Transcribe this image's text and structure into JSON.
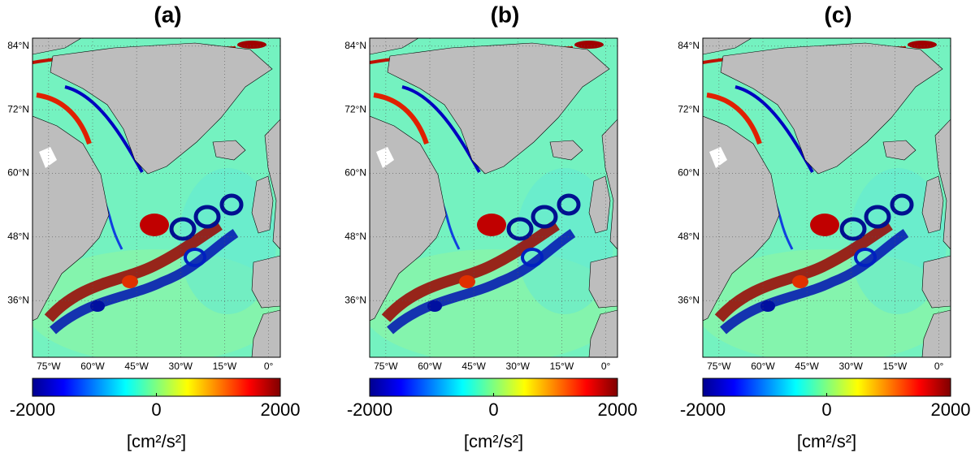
{
  "panels": [
    {
      "label": "(a)",
      "map": {
        "xlim": [
          -80.5,
          4
        ],
        "ylim": [
          25.3,
          85.5
        ],
        "lat_ticks": [
          {
            "value": 84,
            "label": "84°N"
          },
          {
            "value": 72,
            "label": "72°N"
          },
          {
            "value": 60,
            "label": "60°N"
          },
          {
            "value": 48,
            "label": "48°N"
          },
          {
            "value": 36,
            "label": "36°N"
          }
        ],
        "lon_ticks": [
          {
            "value": -75,
            "label": "75°W"
          },
          {
            "value": -60,
            "label": "60°W"
          },
          {
            "value": -45,
            "label": "45°W"
          },
          {
            "value": -30,
            "label": "30°W"
          },
          {
            "value": -15,
            "label": "15°W"
          },
          {
            "value": 0,
            "label": "0°"
          }
        ]
      },
      "colorbar": {
        "range": [
          -2000,
          2000
        ],
        "ticks": [
          -2000,
          0,
          2000
        ],
        "label": "[cm²/s²]"
      }
    },
    {
      "label": "(b)",
      "map": {
        "xlim": [
          -80.5,
          4
        ],
        "ylim": [
          25.3,
          85.5
        ],
        "lat_ticks": [
          {
            "value": 84,
            "label": "84°N"
          },
          {
            "value": 72,
            "label": "72°N"
          },
          {
            "value": 60,
            "label": "60°N"
          },
          {
            "value": 48,
            "label": "48°N"
          },
          {
            "value": 36,
            "label": "36°N"
          }
        ],
        "lon_ticks": [
          {
            "value": -75,
            "label": "75°W"
          },
          {
            "value": -60,
            "label": "60°W"
          },
          {
            "value": -45,
            "label": "45°W"
          },
          {
            "value": -30,
            "label": "30°W"
          },
          {
            "value": -15,
            "label": "15°W"
          },
          {
            "value": 0,
            "label": "0°"
          }
        ]
      },
      "colorbar": {
        "range": [
          -2000,
          2000
        ],
        "ticks": [
          -2000,
          0,
          2000
        ],
        "label": "[cm²/s²]"
      }
    },
    {
      "label": "(c)",
      "map": {
        "xlim": [
          -80.5,
          4
        ],
        "ylim": [
          25.3,
          85.5
        ],
        "lat_ticks": [
          {
            "value": 84,
            "label": "84°N"
          },
          {
            "value": 72,
            "label": "72°N"
          },
          {
            "value": 60,
            "label": "60°N"
          },
          {
            "value": 48,
            "label": "48°N"
          },
          {
            "value": 36,
            "label": "36°N"
          }
        ],
        "lon_ticks": [
          {
            "value": -75,
            "label": "75°W"
          },
          {
            "value": -60,
            "label": "60°W"
          },
          {
            "value": -45,
            "label": "45°W"
          },
          {
            "value": -30,
            "label": "30°W"
          },
          {
            "value": -15,
            "label": "15°W"
          },
          {
            "value": 0,
            "label": "0°"
          }
        ]
      },
      "colorbar": {
        "range": [
          -2000,
          2000
        ],
        "ticks": [
          -2000,
          0,
          2000
        ],
        "label": "[cm²/s²]"
      }
    }
  ]
}
